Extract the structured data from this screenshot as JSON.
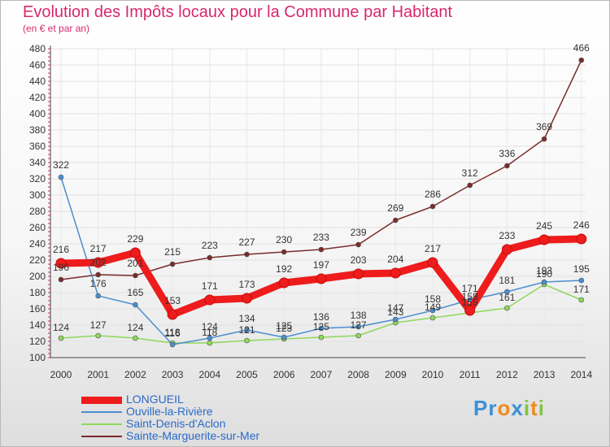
{
  "header": {
    "title": "Evolution des Impôts locaux pour la Commune par Habitant",
    "subtitle": "(en € et par an)"
  },
  "logo": {
    "text": "Proxiti"
  },
  "chart_data": {
    "type": "line",
    "title": "Evolution des Impôts locaux pour la Commune par Habitant",
    "subtitle": "(en € et par an)",
    "xlabel": "",
    "ylabel": "",
    "ylim": [
      100,
      480
    ],
    "yticks": [
      100,
      120,
      140,
      160,
      180,
      200,
      220,
      240,
      260,
      280,
      300,
      320,
      340,
      360,
      380,
      400,
      420,
      440,
      460,
      480
    ],
    "categories": [
      "2000",
      "2001",
      "2002",
      "2003",
      "2004",
      "2005",
      "2006",
      "2007",
      "2008",
      "2009",
      "2010",
      "2011",
      "2012",
      "2013",
      "2014"
    ],
    "grid": true,
    "legend_position": "bottom-left",
    "series": [
      {
        "name": "LONGUEIL",
        "color": "#ee1c1c",
        "values": [
          216,
          217,
          229,
          153,
          171,
          173,
          192,
          197,
          203,
          204,
          217,
          158,
          233,
          245,
          246
        ],
        "labels": [
          "216",
          "217",
          "229",
          "153",
          "171",
          "173",
          "192",
          "197",
          "203",
          "204",
          "217",
          "158",
          "233",
          "245",
          "246"
        ]
      },
      {
        "name": "Ouville-la-Rivière",
        "color": "#4a8ed0",
        "values": [
          322,
          176,
          165,
          116,
          124,
          134,
          125,
          136,
          138,
          147,
          158,
          171,
          181,
          193,
          195
        ],
        "labels": [
          "322",
          "176",
          "165",
          "116",
          "124",
          "134",
          "125",
          "136",
          "138",
          "147",
          "158",
          "171",
          "181",
          "193",
          "195"
        ]
      },
      {
        "name": "Saint-Denis-d'Aclon",
        "color": "#8ed85a",
        "values": [
          124,
          127,
          124,
          118,
          118,
          121,
          123,
          125,
          127,
          143,
          149,
          155,
          161,
          190,
          171
        ],
        "labels": [
          "124",
          "127",
          "124",
          "118",
          "118",
          "121",
          "123",
          "125",
          "127",
          "143",
          "149",
          "155",
          "161",
          "190",
          "171"
        ]
      },
      {
        "name": "Sainte-Marguerite-sur-Mer",
        "color": "#7a2c2c",
        "values": [
          196,
          202,
          201,
          215,
          223,
          227,
          230,
          233,
          239,
          269,
          286,
          312,
          336,
          369,
          466
        ],
        "labels": [
          "196",
          "202",
          "201",
          "215",
          "223",
          "227",
          "230",
          "233",
          "239",
          "269",
          "286",
          "312",
          "336",
          "369",
          "466"
        ]
      }
    ]
  }
}
